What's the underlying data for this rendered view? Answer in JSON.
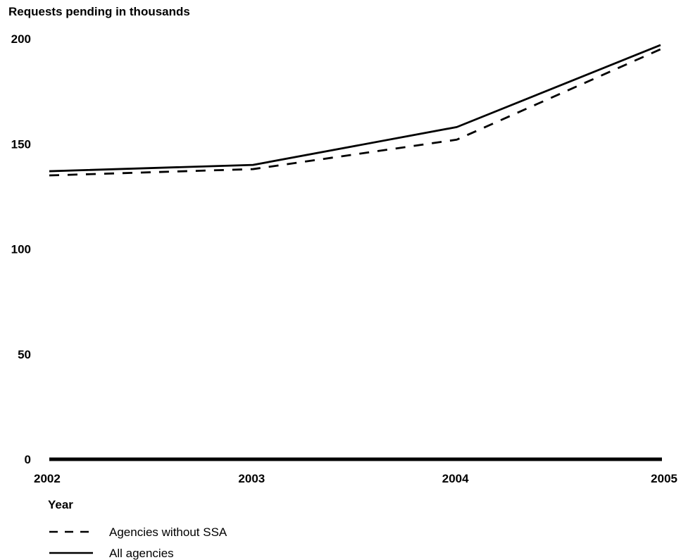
{
  "chart_data": {
    "type": "line",
    "title": "",
    "ylabel": "Requests pending in thousands",
    "xlabel": "Year",
    "x": [
      "2002",
      "2003",
      "2004",
      "2005"
    ],
    "y_ticks": [
      "0",
      "50",
      "100",
      "150",
      "200"
    ],
    "ylim": [
      0,
      200
    ],
    "grid": false,
    "legend_position": "bottom-left",
    "series": [
      {
        "name": "Agencies without SSA",
        "style": "dashed",
        "color": "#000000",
        "values": [
          135,
          138,
          152,
          195
        ]
      },
      {
        "name": "All agencies",
        "style": "solid",
        "color": "#000000",
        "values": [
          137,
          140,
          158,
          197
        ]
      }
    ]
  }
}
